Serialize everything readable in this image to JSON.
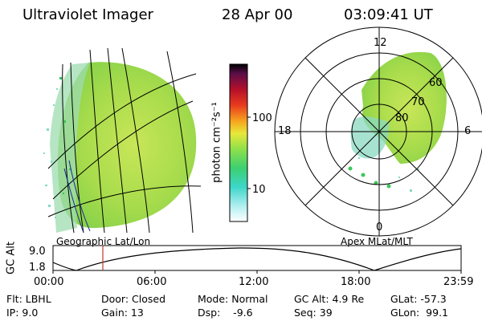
{
  "header": {
    "title": "Ultraviolet Imager",
    "date": "28 Apr 00",
    "time": "03:09:41 UT"
  },
  "colorbar": {
    "label": "photon cm⁻²s⁻¹",
    "tick_100": "100",
    "tick_10": "10"
  },
  "polar": {
    "mlt_top": "12",
    "mlt_left": "18",
    "mlt_right": "6",
    "mlt_bottom": "0",
    "lat_60": "60",
    "lat_70": "70",
    "lat_80": "80"
  },
  "captions": {
    "left": "Geographic Lat/Lon",
    "right": "Apex MLat/MLT"
  },
  "altplot": {
    "ylabel": "GC Alt",
    "y_hi": "9.0",
    "y_lo": "1.8",
    "x_ticks": [
      "00:00",
      "06:00",
      "12:00",
      "18:00",
      "23:59"
    ]
  },
  "info": {
    "flt": "Flt: LBHL",
    "ip": "IP:  9.0",
    "door": "Door: Closed",
    "gain": "Gain: 13",
    "mode": "Mode: Normal",
    "dsp": "Dsp:    -9.6",
    "gcalt": "GC Alt: 4.9 Re",
    "seq": "Seq: 39",
    "glat": "GLat: -57.3",
    "glon": "GLon:  99.1"
  },
  "colors": {
    "aurora": "#9ad84a",
    "aurora_light": "#c8ec6a",
    "speckle": "#7fdcc0",
    "marker": "#c0392b"
  }
}
